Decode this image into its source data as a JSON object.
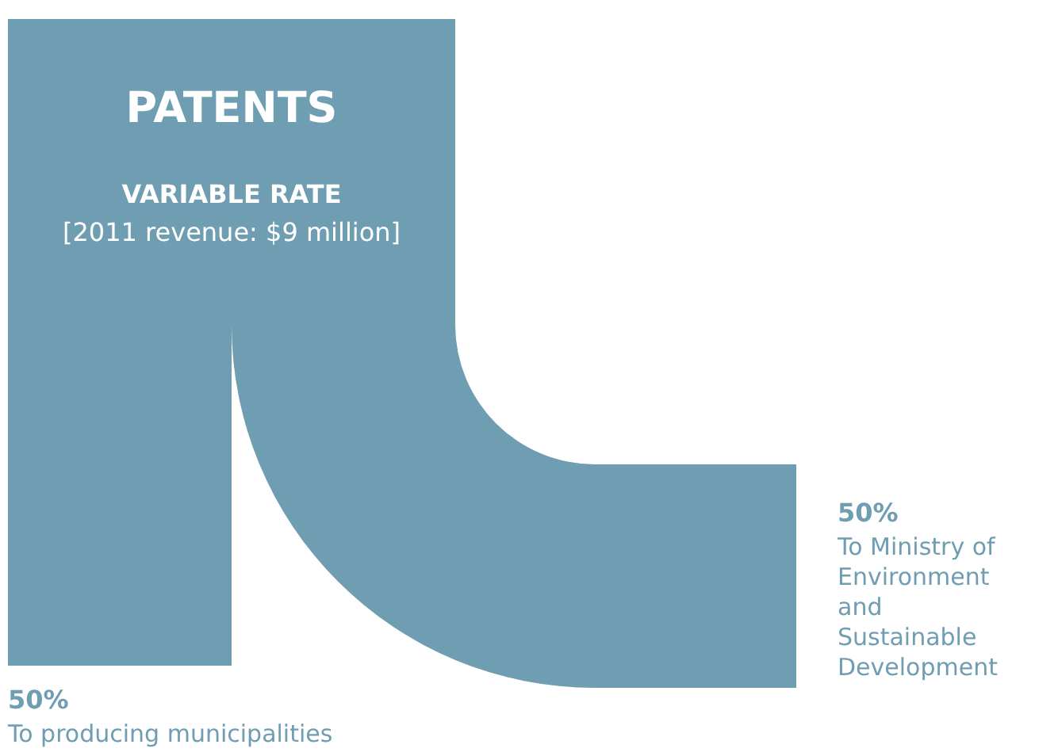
{
  "chart_data": {
    "type": "other",
    "title": "PATENTS",
    "subtitle": "VARIABLE RATE",
    "annotations": [
      "[2011 revenue: $9 million]"
    ],
    "categories": [
      "To producing municipalities",
      "To Ministry of Environment and Sustainable Development"
    ],
    "values": [
      50,
      50
    ],
    "value_labels": [
      "50%",
      "50%"
    ],
    "color": "#6f9db1"
  }
}
